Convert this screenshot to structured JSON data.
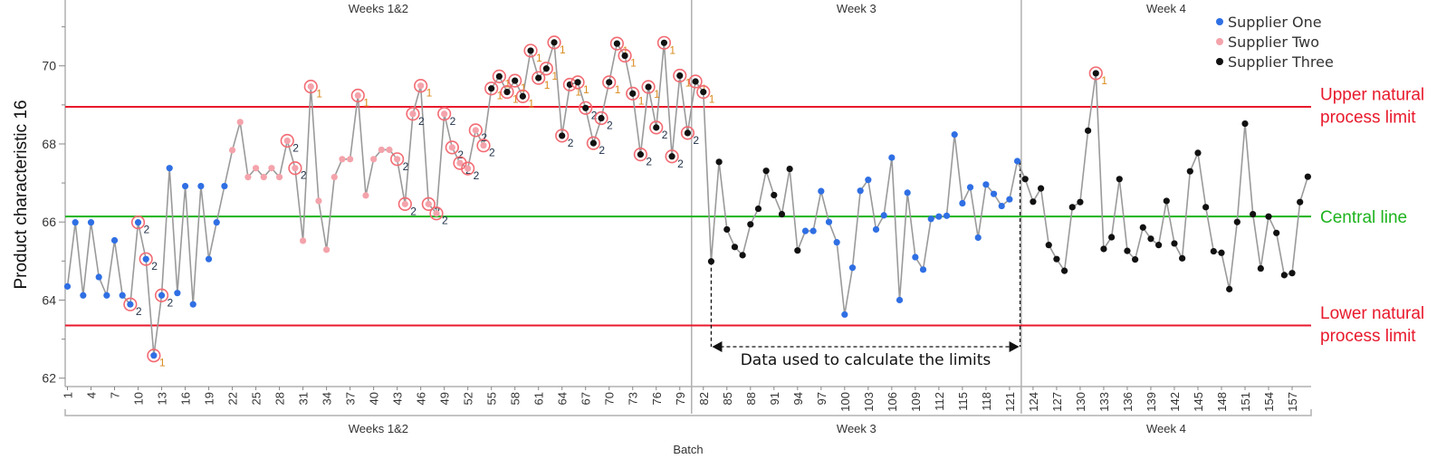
{
  "chart_data": {
    "type": "line",
    "xlabel": "Batch",
    "ylabel": "Product characteristic 16",
    "ylim": [
      61.8,
      71.2
    ],
    "xlim": [
      1,
      159
    ],
    "y_ticks": [
      62,
      64,
      66,
      68,
      70
    ],
    "x_ticks": [
      1,
      4,
      7,
      10,
      13,
      16,
      19,
      22,
      25,
      28,
      31,
      34,
      37,
      40,
      43,
      46,
      49,
      52,
      55,
      58,
      61,
      64,
      67,
      70,
      73,
      76,
      79,
      82,
      85,
      88,
      91,
      94,
      97,
      100,
      103,
      106,
      109,
      112,
      115,
      118,
      121,
      124,
      127,
      130,
      133,
      136,
      139,
      142,
      145,
      148,
      151,
      154,
      157
    ],
    "grid": false,
    "legend_position": "top-right",
    "legend": [
      {
        "name": "Supplier One",
        "color": "#2f6fe4"
      },
      {
        "name": "Supplier Two",
        "color": "#f4a3ab"
      },
      {
        "name": "Supplier Three",
        "color": "#111111"
      }
    ],
    "supplier_ranges": [
      {
        "supplier": "Supplier One",
        "from": 1,
        "to": 21
      },
      {
        "supplier": "Supplier Two",
        "from": 22,
        "to": 54
      },
      {
        "supplier": "Supplier Three",
        "from": 55,
        "to": 94
      },
      {
        "supplier": "Supplier One",
        "from": 95,
        "to": 122
      },
      {
        "supplier": "Supplier Three",
        "from": 123,
        "to": 159
      }
    ],
    "values": [
      64.35,
      65.99,
      64.12,
      65.99,
      64.59,
      64.12,
      65.53,
      64.12,
      63.89,
      65.99,
      65.05,
      62.58,
      64.12,
      67.38,
      64.18,
      66.92,
      63.89,
      66.92,
      65.05,
      65.99,
      66.92,
      67.84,
      68.56,
      67.15,
      67.38,
      67.15,
      67.38,
      67.15,
      68.08,
      67.38,
      65.52,
      69.47,
      66.54,
      65.29,
      67.15,
      67.61,
      67.61,
      69.24,
      66.68,
      67.61,
      67.85,
      67.85,
      67.61,
      66.46,
      68.77,
      69.49,
      66.46,
      66.22,
      68.77,
      67.91,
      67.51,
      67.37,
      68.35,
      67.96,
      69.42,
      69.73,
      69.33,
      69.62,
      69.22,
      70.39,
      69.69,
      69.93,
      70.6,
      68.21,
      69.52,
      69.58,
      68.92,
      68.02,
      68.66,
      69.58,
      70.57,
      70.26,
      69.29,
      67.73,
      69.46,
      68.42,
      70.59,
      67.68,
      69.75,
      68.28,
      69.6,
      69.33,
      64.99,
      67.54,
      65.81,
      65.36,
      65.15,
      65.94,
      66.34,
      67.31,
      66.69,
      66.2,
      67.36,
      65.27,
      65.77,
      65.77,
      66.79,
      66.0,
      65.48,
      63.63,
      64.83,
      66.8,
      67.08,
      65.81,
      66.17,
      67.65,
      64.0,
      66.75,
      65.1,
      64.78,
      66.08,
      66.14,
      66.16,
      68.24,
      66.48,
      66.89,
      65.6,
      66.96,
      66.72,
      66.41,
      66.58,
      67.56,
      67.1,
      66.52,
      66.86,
      65.41,
      65.05,
      64.75,
      66.38,
      66.51,
      68.34,
      69.81,
      65.31,
      65.61,
      67.1,
      65.26,
      65.04,
      65.86,
      65.57,
      65.41,
      66.54,
      65.45,
      65.07,
      67.3,
      67.77,
      66.38,
      65.25,
      65.21,
      64.28,
      66.0,
      68.52,
      66.2,
      64.81,
      66.14,
      65.72,
      64.64,
      64.69,
      66.51,
      67.16
    ],
    "rule_flags": {
      "1": [
        12,
        32,
        38,
        46,
        55,
        56,
        57,
        58,
        59,
        60,
        61,
        62,
        63,
        65,
        66,
        70,
        71,
        72,
        73,
        75,
        77,
        79,
        81,
        82,
        132
      ],
      "2": [
        9,
        10,
        11,
        13,
        29,
        30,
        43,
        44,
        45,
        47,
        48,
        49,
        50,
        51,
        52,
        53,
        54,
        64,
        67,
        68,
        69,
        74,
        76,
        78,
        80
      ]
    },
    "limits": [
      {
        "name": "upper",
        "value": 68.95,
        "label_lines": [
          "Upper natural",
          "process limit"
        ],
        "color": "#e8192c"
      },
      {
        "name": "central",
        "value": 66.14,
        "label_lines": [
          "Central line"
        ],
        "color": "#1db31d"
      },
      {
        "name": "lower",
        "value": 63.35,
        "label_lines": [
          "Lower natural",
          "process limit"
        ],
        "color": "#e8192c"
      }
    ],
    "phases": [
      {
        "label": "Weeks 1&2",
        "from": 1,
        "to": 80
      },
      {
        "label": "Week 3",
        "from": 81,
        "to": 122
      },
      {
        "label": "Week 4",
        "from": 123,
        "to": 159
      }
    ],
    "annotation": {
      "text": "Data used to calculate the limits",
      "from": 83,
      "to": 122
    }
  }
}
